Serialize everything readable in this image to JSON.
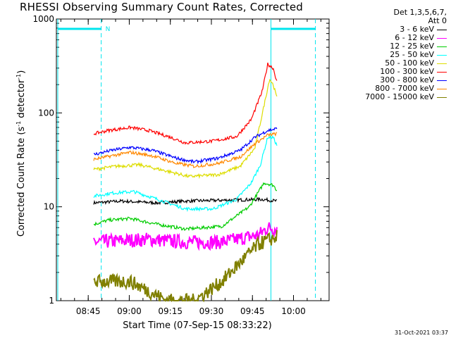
{
  "colors": {
    "background": "#ffffff",
    "axis": "#000000",
    "cyan_marker": "#00e5ee"
  },
  "chart_data": {
    "type": "line",
    "title": "RHESSI Observing Summary Count Rates, Corrected",
    "xlabel": "Start Time (07-Sep-15 08:33:22)",
    "ylabel_prefix": "Corrected Count Rate (s",
    "ylabel_sup1": "-1",
    "ylabel_mid": " detector",
    "ylabel_sup2": "-1",
    "ylabel_suffix": ")",
    "y_scale": "log",
    "ylim": [
      1,
      1000
    ],
    "xlim": [
      "08:33:22",
      "10:13:00"
    ],
    "x_ticks": [
      "08:45",
      "09:00",
      "09:15",
      "09:30",
      "09:45",
      "10:00"
    ],
    "y_ticks": [
      1,
      10,
      100,
      1000
    ],
    "y_tick_labels": [
      "1",
      "10",
      "100",
      "1000"
    ],
    "legend_header": [
      "Det 1,3,5,6,7,",
      "Att 0"
    ],
    "legend_position": "top-right, outside plot",
    "data_span": [
      "08:47:00",
      "09:53:55"
    ],
    "series": [
      {
        "name": "3 - 6 keV",
        "color": "#000000",
        "values": [
          [
            0,
            11
          ],
          [
            0.15,
            11.5
          ],
          [
            0.35,
            11
          ],
          [
            0.5,
            11.5
          ],
          [
            0.75,
            11.8
          ],
          [
            0.92,
            12
          ],
          [
            1.0,
            11.5
          ]
        ]
      },
      {
        "name": "6 - 12 keV",
        "color": "#ff00ff",
        "values": [
          [
            0,
            4.2
          ],
          [
            0.3,
            4.5
          ],
          [
            0.5,
            4.2
          ],
          [
            0.7,
            4.2
          ],
          [
            0.9,
            5
          ],
          [
            0.95,
            6
          ],
          [
            1.0,
            5.8
          ]
        ]
      },
      {
        "name": "12 - 25 keV",
        "color": "#00cc00",
        "values": [
          [
            0,
            6.5
          ],
          [
            0.08,
            7.2
          ],
          [
            0.2,
            7.5
          ],
          [
            0.35,
            6.5
          ],
          [
            0.5,
            5.8
          ],
          [
            0.7,
            6.2
          ],
          [
            0.85,
            10
          ],
          [
            0.93,
            18
          ],
          [
            0.98,
            17
          ],
          [
            1.0,
            15
          ]
        ]
      },
      {
        "name": "25 - 50 keV",
        "color": "#00ffff",
        "values": [
          [
            0,
            13
          ],
          [
            0.1,
            14
          ],
          [
            0.22,
            14.5
          ],
          [
            0.35,
            12
          ],
          [
            0.5,
            9.5
          ],
          [
            0.65,
            9.5
          ],
          [
            0.78,
            12
          ],
          [
            0.86,
            18
          ],
          [
            0.91,
            28
          ],
          [
            0.95,
            55
          ],
          [
            0.98,
            55
          ],
          [
            1.0,
            45
          ]
        ]
      },
      {
        "name": "50 - 100 keV",
        "color": "#dddd00",
        "values": [
          [
            0,
            25
          ],
          [
            0.12,
            27
          ],
          [
            0.25,
            28
          ],
          [
            0.4,
            24
          ],
          [
            0.52,
            21
          ],
          [
            0.68,
            22
          ],
          [
            0.8,
            27
          ],
          [
            0.88,
            42
          ],
          [
            0.93,
            120
          ],
          [
            0.96,
            230
          ],
          [
            0.98,
            200
          ],
          [
            1.0,
            145
          ]
        ]
      },
      {
        "name": "100 - 300 keV",
        "color": "#ff0000",
        "values": [
          [
            0,
            60
          ],
          [
            0.08,
            65
          ],
          [
            0.2,
            70
          ],
          [
            0.3,
            65
          ],
          [
            0.42,
            55
          ],
          [
            0.5,
            48
          ],
          [
            0.65,
            50
          ],
          [
            0.78,
            56
          ],
          [
            0.86,
            85
          ],
          [
            0.92,
            170
          ],
          [
            0.95,
            330
          ],
          [
            0.98,
            300
          ],
          [
            1.0,
            215
          ]
        ]
      },
      {
        "name": "300 - 800 keV",
        "color": "#0000ff",
        "values": [
          [
            0,
            36
          ],
          [
            0.1,
            40
          ],
          [
            0.2,
            43
          ],
          [
            0.32,
            40
          ],
          [
            0.45,
            33
          ],
          [
            0.55,
            30
          ],
          [
            0.68,
            33
          ],
          [
            0.8,
            40
          ],
          [
            0.88,
            55
          ],
          [
            0.95,
            65
          ],
          [
            1.0,
            68
          ]
        ]
      },
      {
        "name": "800 - 7000 keV",
        "color": "#ff8800",
        "values": [
          [
            0,
            32
          ],
          [
            0.1,
            35
          ],
          [
            0.2,
            38
          ],
          [
            0.32,
            35
          ],
          [
            0.45,
            29
          ],
          [
            0.55,
            27
          ],
          [
            0.68,
            29
          ],
          [
            0.8,
            34
          ],
          [
            0.88,
            47
          ],
          [
            0.95,
            58
          ],
          [
            1.0,
            60
          ]
        ]
      },
      {
        "name": "7000 - 15000 keV",
        "color": "#808000",
        "values": [
          [
            0,
            1.6
          ],
          [
            0.2,
            1.6
          ],
          [
            0.4,
            1
          ],
          [
            0.55,
            1
          ],
          [
            0.7,
            1.6
          ],
          [
            0.82,
            2.8
          ],
          [
            0.9,
            4
          ],
          [
            1.0,
            4.8
          ]
        ]
      }
    ]
  },
  "stamp": "31-Oct-2021 03:37",
  "marker_label": "N"
}
